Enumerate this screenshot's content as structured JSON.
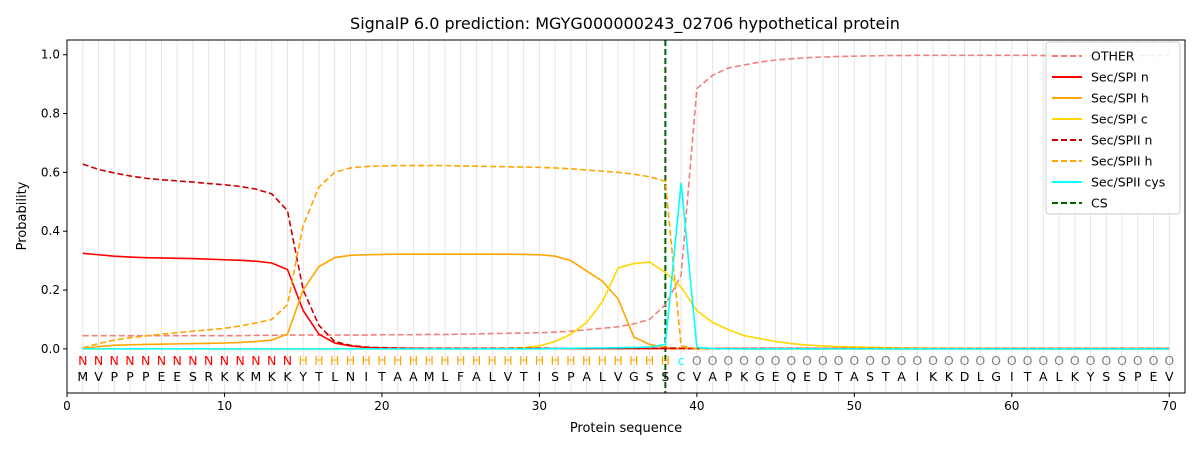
{
  "chart_data": {
    "type": "line",
    "title": "SignalP 6.0 prediction: MGYG000000243_02706 hypothetical protein",
    "xlabel": "Protein sequence",
    "ylabel": "Probability",
    "xlim": [
      0,
      71
    ],
    "ylim": [
      -0.15,
      1.05
    ],
    "xticks": [
      0,
      10,
      20,
      30,
      40,
      50,
      60,
      70
    ],
    "yticks": [
      0.0,
      0.2,
      0.4,
      0.6,
      0.8,
      1.0
    ],
    "x_tick_labels": [
      "0",
      "10",
      "20",
      "30",
      "40",
      "50",
      "60",
      "70"
    ],
    "y_tick_labels": [
      "0.0",
      "0.2",
      "0.4",
      "0.6",
      "0.8",
      "1.0"
    ],
    "grid": "vertical lines at each residue",
    "legend_position": "top-right",
    "sequence": [
      "M",
      "V",
      "P",
      "P",
      "P",
      "E",
      "E",
      "S",
      "R",
      "K",
      "K",
      "M",
      "K",
      "K",
      "Y",
      "T",
      "L",
      "N",
      "I",
      "T",
      "A",
      "A",
      "M",
      "L",
      "F",
      "A",
      "L",
      "V",
      "T",
      "I",
      "S",
      "P",
      "A",
      "L",
      "V",
      "G",
      "S",
      "S",
      "C",
      "V",
      "A",
      "P",
      "K",
      "G",
      "E",
      "Q",
      "E",
      "D",
      "T",
      "A",
      "S",
      "T",
      "A",
      "I",
      "K",
      "K",
      "D",
      "L",
      "G",
      "I",
      "T",
      "A",
      "L",
      "K",
      "Y",
      "S",
      "S",
      "P",
      "E",
      "V"
    ],
    "region_labels": [
      "N",
      "N",
      "N",
      "N",
      "N",
      "N",
      "N",
      "N",
      "N",
      "N",
      "N",
      "N",
      "N",
      "N",
      "H",
      "H",
      "H",
      "H",
      "H",
      "H",
      "H",
      "H",
      "H",
      "H",
      "H",
      "H",
      "H",
      "H",
      "H",
      "H",
      "H",
      "H",
      "H",
      "H",
      "H",
      "H",
      "H",
      "H",
      "c",
      "O",
      "O",
      "O",
      "O",
      "O",
      "O",
      "O",
      "O",
      "O",
      "O",
      "O",
      "O",
      "O",
      "O",
      "O",
      "O",
      "O",
      "O",
      "O",
      "O",
      "O",
      "O",
      "O",
      "O",
      "O",
      "O",
      "O",
      "O",
      "O",
      "O",
      "O"
    ],
    "region_colors": {
      "N": "#ff0000",
      "H": "#ffa500",
      "c": "#00ffff",
      "O": "#808080"
    },
    "cs_position": 38,
    "series": [
      {
        "name": "OTHER",
        "color": "#f08080",
        "dash": true,
        "values": [
          0.045,
          0.045,
          0.045,
          0.045,
          0.045,
          0.045,
          0.045,
          0.045,
          0.045,
          0.045,
          0.045,
          0.046,
          0.046,
          0.047,
          0.047,
          0.047,
          0.047,
          0.047,
          0.047,
          0.048,
          0.048,
          0.048,
          0.049,
          0.049,
          0.05,
          0.051,
          0.052,
          0.053,
          0.054,
          0.055,
          0.057,
          0.06,
          0.065,
          0.07,
          0.075,
          0.085,
          0.1,
          0.15,
          0.25,
          0.885,
          0.93,
          0.955,
          0.965,
          0.975,
          0.982,
          0.986,
          0.99,
          0.992,
          0.994,
          0.995,
          0.996,
          0.997,
          0.997,
          0.998,
          0.998,
          0.998,
          0.998,
          0.998,
          0.998,
          0.998,
          0.998,
          0.997,
          0.997,
          0.997,
          0.997,
          0.997,
          0.997,
          0.997,
          0.997,
          0.997
        ]
      },
      {
        "name": "Sec/SPI n",
        "color": "#ff0000",
        "dash": false,
        "values": [
          0.325,
          0.32,
          0.315,
          0.312,
          0.31,
          0.309,
          0.308,
          0.307,
          0.305,
          0.303,
          0.301,
          0.298,
          0.292,
          0.27,
          0.13,
          0.05,
          0.02,
          0.01,
          0.005,
          0.003,
          0.002,
          0.002,
          0.001,
          0.001,
          0.001,
          0.001,
          0.001,
          0.001,
          0.001,
          0.001,
          0.001,
          0.001,
          0.001,
          0.001,
          0.001,
          0.001,
          0.001,
          0.001,
          0.001,
          0.001,
          0.001,
          0.001,
          0.001,
          0.001,
          0.001,
          0.001,
          0.001,
          0.001,
          0.001,
          0.001,
          0.001,
          0.001,
          0.001,
          0.001,
          0.001,
          0.001,
          0.001,
          0.001,
          0.001,
          0.001,
          0.001,
          0.001,
          0.001,
          0.001,
          0.001,
          0.001,
          0.001,
          0.001,
          0.001,
          0.001
        ]
      },
      {
        "name": "Sec/SPI h",
        "color": "#ffa500",
        "dash": false,
        "values": [
          0.0,
          0.008,
          0.012,
          0.014,
          0.015,
          0.016,
          0.017,
          0.018,
          0.019,
          0.02,
          0.022,
          0.025,
          0.03,
          0.05,
          0.2,
          0.28,
          0.31,
          0.318,
          0.32,
          0.321,
          0.322,
          0.322,
          0.322,
          0.322,
          0.322,
          0.322,
          0.322,
          0.322,
          0.321,
          0.32,
          0.315,
          0.3,
          0.265,
          0.23,
          0.17,
          0.04,
          0.015,
          0.005,
          0.002,
          0.001,
          0.001,
          0.001,
          0.0,
          0.0,
          0.0,
          0.0,
          0.0,
          0.0,
          0.0,
          0.0,
          0.0,
          0.0,
          0.0,
          0.0,
          0.0,
          0.0,
          0.0,
          0.0,
          0.0,
          0.0,
          0.0,
          0.0,
          0.0,
          0.0,
          0.0,
          0.0,
          0.0,
          0.0,
          0.0,
          0.0
        ]
      },
      {
        "name": "Sec/SPI c",
        "color": "#ffd700",
        "dash": false,
        "values": [
          0.0,
          0.0,
          0.0,
          0.0,
          0.0,
          0.0,
          0.0,
          0.0,
          0.0,
          0.0,
          0.0,
          0.0,
          0.0,
          0.0,
          0.0,
          0.0,
          0.0,
          0.0,
          0.0,
          0.0,
          0.0,
          0.0,
          0.0,
          0.0,
          0.0,
          0.0,
          0.001,
          0.002,
          0.004,
          0.01,
          0.025,
          0.05,
          0.09,
          0.16,
          0.275,
          0.29,
          0.295,
          0.26,
          0.21,
          0.13,
          0.09,
          0.065,
          0.045,
          0.035,
          0.025,
          0.018,
          0.013,
          0.01,
          0.008,
          0.006,
          0.005,
          0.004,
          0.003,
          0.003,
          0.002,
          0.002,
          0.002,
          0.002,
          0.001,
          0.001,
          0.001,
          0.001,
          0.001,
          0.001,
          0.001,
          0.001,
          0.001,
          0.001,
          0.001,
          0.001
        ]
      },
      {
        "name": "Sec/SPII n",
        "color": "#cc0000",
        "dash": true,
        "values": [
          0.628,
          0.61,
          0.598,
          0.588,
          0.58,
          0.575,
          0.571,
          0.567,
          0.562,
          0.558,
          0.552,
          0.543,
          0.527,
          0.47,
          0.2,
          0.08,
          0.025,
          0.012,
          0.006,
          0.004,
          0.003,
          0.002,
          0.002,
          0.002,
          0.002,
          0.002,
          0.002,
          0.002,
          0.002,
          0.002,
          0.002,
          0.002,
          0.002,
          0.002,
          0.002,
          0.002,
          0.002,
          0.002,
          0.002,
          0.001,
          0.001,
          0.001,
          0.001,
          0.001,
          0.001,
          0.001,
          0.001,
          0.001,
          0.001,
          0.001,
          0.001,
          0.001,
          0.001,
          0.001,
          0.001,
          0.001,
          0.001,
          0.001,
          0.001,
          0.001,
          0.001,
          0.001,
          0.001,
          0.001,
          0.001,
          0.001,
          0.001,
          0.001,
          0.001,
          0.001
        ]
      },
      {
        "name": "Sec/SPII h",
        "color": "#ffa500",
        "dash": true,
        "values": [
          0.003,
          0.018,
          0.03,
          0.038,
          0.044,
          0.05,
          0.055,
          0.06,
          0.065,
          0.07,
          0.078,
          0.088,
          0.1,
          0.15,
          0.42,
          0.55,
          0.6,
          0.615,
          0.62,
          0.622,
          0.623,
          0.623,
          0.623,
          0.623,
          0.622,
          0.621,
          0.62,
          0.619,
          0.618,
          0.617,
          0.615,
          0.612,
          0.608,
          0.604,
          0.6,
          0.594,
          0.585,
          0.57,
          0.01,
          0.001,
          0.0,
          0.0,
          0.0,
          0.0,
          0.0,
          0.0,
          0.0,
          0.0,
          0.0,
          0.0,
          0.0,
          0.0,
          0.0,
          0.0,
          0.0,
          0.0,
          0.0,
          0.0,
          0.0,
          0.0,
          0.0,
          0.0,
          0.0,
          0.0,
          0.0,
          0.0,
          0.0,
          0.0,
          0.0,
          0.0
        ]
      },
      {
        "name": "Sec/SPII cys",
        "color": "#00ffff",
        "dash": false,
        "values": [
          0.0,
          0.0,
          0.0,
          0.0,
          0.0,
          0.0,
          0.0,
          0.0,
          0.0,
          0.0,
          0.0,
          0.0,
          0.0,
          0.0,
          0.0,
          0.0,
          0.0,
          0.0,
          0.0,
          0.0,
          0.0,
          0.0,
          0.0,
          0.0,
          0.0,
          0.0,
          0.0,
          0.0,
          0.0,
          0.0,
          0.001,
          0.002,
          0.003,
          0.003,
          0.004,
          0.005,
          0.006,
          0.015,
          0.565,
          0.005,
          0.001,
          0.0,
          0.0,
          0.0,
          0.0,
          0.0,
          0.0,
          0.0,
          0.0,
          0.0,
          0.0,
          0.0,
          0.0,
          0.0,
          0.0,
          0.0,
          0.0,
          0.0,
          0.0,
          0.0,
          0.0,
          0.0,
          0.0,
          0.0,
          0.0,
          0.0,
          0.0,
          0.0,
          0.0,
          0.0
        ]
      }
    ],
    "cs_legend": {
      "name": "CS",
      "color": "#006400"
    }
  }
}
